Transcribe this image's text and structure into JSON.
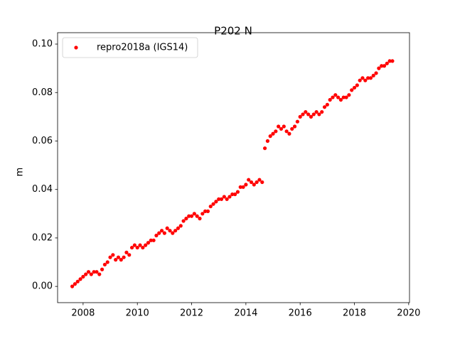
{
  "chart_data": {
    "type": "scatter",
    "title": "P202 N",
    "y_label": "m",
    "xlim": [
      2007.06,
      2020.03
    ],
    "ylim": [
      -0.0067,
      0.1047
    ],
    "xticks": [
      2008,
      2010,
      2012,
      2014,
      2016,
      2018,
      2020
    ],
    "yticks": [
      {
        "value": 0,
        "label": "0.00"
      },
      {
        "value": 0.02,
        "label": "0.02"
      },
      {
        "value": 0.04,
        "label": "0.04"
      },
      {
        "value": 0.06,
        "label": "0.06"
      },
      {
        "value": 0.08,
        "label": "0.08"
      },
      {
        "value": 0.1,
        "label": "0.10"
      }
    ],
    "legend": "upper left",
    "grid": false,
    "x": [
      2007.6,
      2007.7,
      2007.8,
      2007.9,
      2008.0,
      2008.1,
      2008.2,
      2008.3,
      2008.4,
      2008.5,
      2008.6,
      2008.7,
      2008.8,
      2008.9,
      2009.0,
      2009.1,
      2009.2,
      2009.3,
      2009.4,
      2009.5,
      2009.6,
      2009.7,
      2009.8,
      2009.9,
      2010.0,
      2010.1,
      2010.2,
      2010.3,
      2010.4,
      2010.5,
      2010.6,
      2010.7,
      2010.8,
      2010.9,
      2011.0,
      2011.1,
      2011.2,
      2011.3,
      2011.4,
      2011.5,
      2011.6,
      2011.7,
      2011.8,
      2011.9,
      2012.0,
      2012.1,
      2012.2,
      2012.3,
      2012.4,
      2012.5,
      2012.6,
      2012.7,
      2012.8,
      2012.9,
      2013.0,
      2013.1,
      2013.2,
      2013.3,
      2013.4,
      2013.5,
      2013.6,
      2013.7,
      2013.8,
      2013.9,
      2014.0,
      2014.1,
      2014.2,
      2014.3,
      2014.4,
      2014.5,
      2014.6,
      2014.7,
      2014.8,
      2014.9,
      2015.0,
      2015.1,
      2015.2,
      2015.3,
      2015.4,
      2015.5,
      2015.6,
      2015.7,
      2015.8,
      2015.9,
      2016.0,
      2016.1,
      2016.2,
      2016.3,
      2016.4,
      2016.5,
      2016.6,
      2016.7,
      2016.8,
      2016.9,
      2017.0,
      2017.1,
      2017.2,
      2017.3,
      2017.4,
      2017.5,
      2017.6,
      2017.7,
      2017.8,
      2017.9,
      2018.0,
      2018.1,
      2018.2,
      2018.3,
      2018.4,
      2018.5,
      2018.6,
      2018.7,
      2018.8,
      2018.9,
      2019.0,
      2019.1,
      2019.2,
      2019.3,
      2019.4
    ],
    "series": [
      {
        "name": "repro2018a (IGS14)",
        "color": "#ff0000",
        "values": [
          0.0,
          0.001,
          0.002,
          0.003,
          0.004,
          0.005,
          0.006,
          0.005,
          0.006,
          0.006,
          0.005,
          0.007,
          0.009,
          0.01,
          0.012,
          0.013,
          0.011,
          0.012,
          0.011,
          0.012,
          0.014,
          0.013,
          0.016,
          0.017,
          0.016,
          0.017,
          0.016,
          0.017,
          0.018,
          0.019,
          0.019,
          0.021,
          0.022,
          0.023,
          0.022,
          0.024,
          0.023,
          0.022,
          0.023,
          0.024,
          0.025,
          0.027,
          0.028,
          0.029,
          0.029,
          0.03,
          0.029,
          0.028,
          0.03,
          0.031,
          0.031,
          0.033,
          0.034,
          0.035,
          0.036,
          0.036,
          0.037,
          0.036,
          0.037,
          0.038,
          0.038,
          0.039,
          0.041,
          0.041,
          0.042,
          0.044,
          0.043,
          0.042,
          0.043,
          0.044,
          0.043,
          0.057,
          0.06,
          0.062,
          0.063,
          0.064,
          0.066,
          0.065,
          0.066,
          0.064,
          0.063,
          0.065,
          0.066,
          0.068,
          0.07,
          0.071,
          0.072,
          0.071,
          0.07,
          0.071,
          0.072,
          0.071,
          0.072,
          0.074,
          0.075,
          0.077,
          0.078,
          0.079,
          0.078,
          0.077,
          0.078,
          0.078,
          0.079,
          0.081,
          0.082,
          0.083,
          0.085,
          0.086,
          0.085,
          0.086,
          0.086,
          0.087,
          0.088,
          0.09,
          0.091,
          0.091,
          0.092,
          0.093,
          0.093
        ]
      }
    ]
  }
}
